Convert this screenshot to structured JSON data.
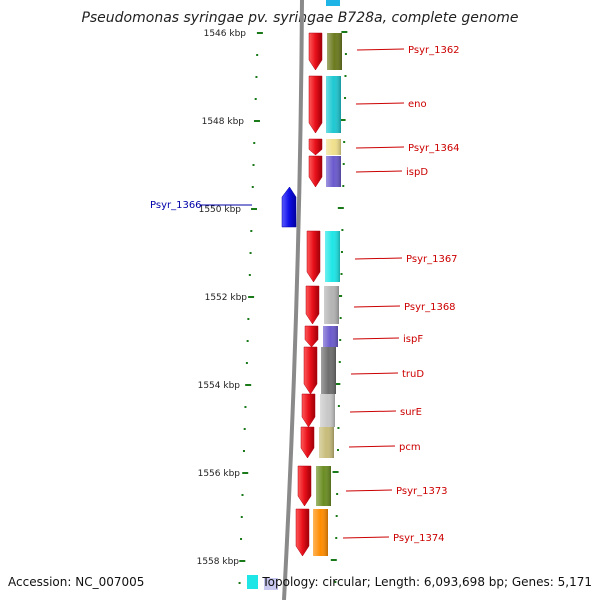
{
  "header": {
    "title": "Pseudomonas syringae pv. syringae B728a, complete genome"
  },
  "footer": {
    "accession": "Accession: NC_007005",
    "summary": "Topology: circular; Length: 6,093,698 bp; Genes: 5,171"
  },
  "scale": {
    "labels": [
      "1546 kbp",
      "1548 kbp",
      "1550 kbp",
      "1552 kbp",
      "1554 kbp",
      "1556 kbp",
      "1558 kbp"
    ]
  },
  "colors": {
    "forward_gene": "#e8101a",
    "reverse_gene": "#1010e8",
    "forward_label": "#cc0000",
    "reverse_label": "#0000aa",
    "tick": "#1a7a1a",
    "backbone": "#888888"
  },
  "genes": [
    {
      "name": "Psyr_1362",
      "strand": "forward",
      "cog_color": "#6b7a1e"
    },
    {
      "name": "eno",
      "strand": "forward",
      "cog_color": "#1ec8d2"
    },
    {
      "name": "Psyr_1364",
      "strand": "forward",
      "cog_color": "#f0e08c"
    },
    {
      "name": "ispD",
      "strand": "forward",
      "cog_color": "#6a5acd"
    },
    {
      "name": "Psyr_1366",
      "strand": "reverse",
      "cog_color": ""
    },
    {
      "name": "Psyr_1367",
      "strand": "forward",
      "cog_color": "#1ee6e6"
    },
    {
      "name": "Psyr_1368",
      "strand": "forward",
      "cog_color": "#b4b4b4"
    },
    {
      "name": "ispF",
      "strand": "forward",
      "cog_color": "#6a5acd"
    },
    {
      "name": "truD",
      "strand": "forward",
      "cog_color": "#6e6e6e"
    },
    {
      "name": "surE",
      "strand": "forward",
      "cog_color": "#c8c8c8"
    },
    {
      "name": "pcm",
      "strand": "forward",
      "cog_color": "#c8bc7a"
    },
    {
      "name": "Psyr_1373",
      "strand": "forward",
      "cog_color": "#6b8e23"
    },
    {
      "name": "Psyr_1374",
      "strand": "forward",
      "cog_color": "#ff8c00"
    }
  ]
}
